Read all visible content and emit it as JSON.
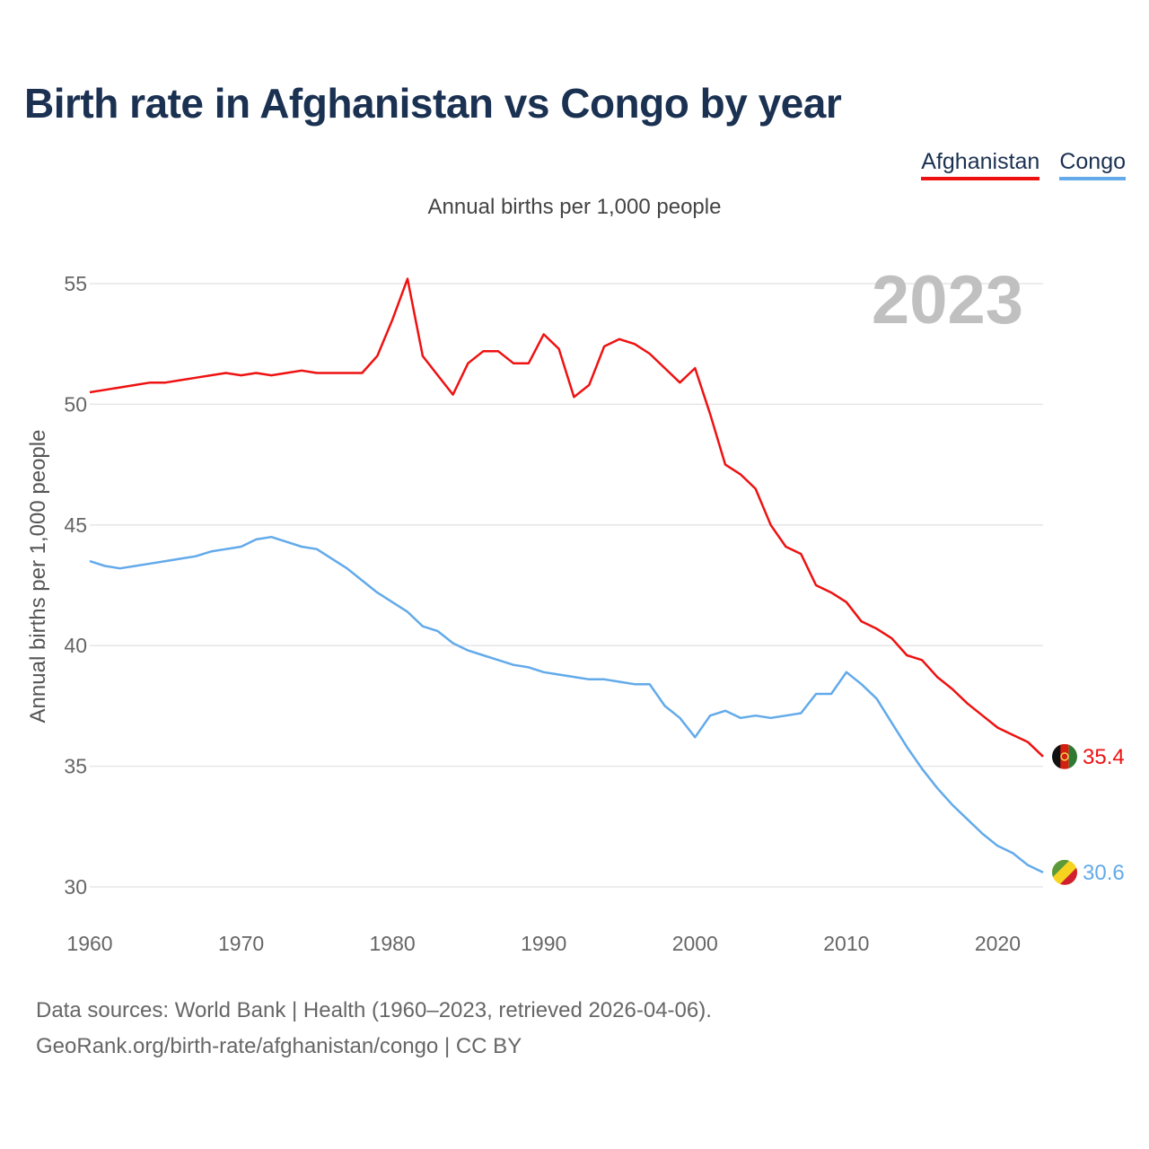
{
  "chart_data": {
    "type": "line",
    "title": "Birth rate in Afghanistan vs Congo by year",
    "subtitle": "Annual births per 1,000 people",
    "ylabel": "Annual births per 1,000 people",
    "xlabel": "",
    "year_label": "2023",
    "xlim": [
      1960,
      2023
    ],
    "ylim": [
      30,
      55
    ],
    "x_ticks": [
      1960,
      1970,
      1980,
      1990,
      2000,
      2010,
      2020
    ],
    "y_ticks": [
      30,
      35,
      40,
      45,
      50,
      55
    ],
    "grid": true,
    "legend_position": "top-right",
    "series": [
      {
        "name": "Afghanistan",
        "color": "#ee1111",
        "end_label": "35.4",
        "x": [
          1960,
          1961,
          1962,
          1963,
          1964,
          1965,
          1966,
          1967,
          1968,
          1969,
          1970,
          1971,
          1972,
          1973,
          1974,
          1975,
          1976,
          1977,
          1978,
          1979,
          1980,
          1981,
          1982,
          1983,
          1984,
          1985,
          1986,
          1987,
          1988,
          1989,
          1990,
          1991,
          1992,
          1993,
          1994,
          1995,
          1996,
          1997,
          1998,
          1999,
          2000,
          2001,
          2002,
          2003,
          2004,
          2005,
          2006,
          2007,
          2008,
          2009,
          2010,
          2011,
          2012,
          2013,
          2014,
          2015,
          2016,
          2017,
          2018,
          2019,
          2020,
          2021,
          2022,
          2023
        ],
        "values": [
          50.5,
          50.6,
          50.7,
          50.8,
          50.9,
          50.9,
          51.0,
          51.1,
          51.2,
          51.3,
          51.2,
          51.3,
          51.2,
          51.3,
          51.4,
          51.3,
          51.3,
          51.3,
          51.3,
          52.0,
          53.5,
          55.2,
          52.0,
          51.2,
          50.4,
          51.7,
          52.2,
          52.2,
          51.7,
          51.7,
          52.9,
          52.3,
          50.3,
          50.8,
          52.4,
          52.7,
          52.5,
          52.1,
          51.5,
          50.9,
          51.5,
          49.6,
          47.5,
          47.1,
          46.5,
          45.0,
          44.1,
          43.8,
          42.5,
          42.2,
          41.8,
          41.0,
          40.7,
          40.3,
          39.6,
          39.4,
          38.7,
          38.2,
          37.6,
          37.1,
          36.6,
          36.3,
          36.0,
          35.4
        ]
      },
      {
        "name": "Congo",
        "color": "#62aaea",
        "end_label": "30.6",
        "x": [
          1960,
          1961,
          1962,
          1963,
          1964,
          1965,
          1966,
          1967,
          1968,
          1969,
          1970,
          1971,
          1972,
          1973,
          1974,
          1975,
          1976,
          1977,
          1978,
          1979,
          1980,
          1981,
          1982,
          1983,
          1984,
          1985,
          1986,
          1987,
          1988,
          1989,
          1990,
          1991,
          1992,
          1993,
          1994,
          1995,
          1996,
          1997,
          1998,
          1999,
          2000,
          2001,
          2002,
          2003,
          2004,
          2005,
          2006,
          2007,
          2008,
          2009,
          2010,
          2011,
          2012,
          2013,
          2014,
          2015,
          2016,
          2017,
          2018,
          2019,
          2020,
          2021,
          2022,
          2023
        ],
        "values": [
          43.5,
          43.3,
          43.2,
          43.3,
          43.4,
          43.5,
          43.6,
          43.7,
          43.9,
          44.0,
          44.1,
          44.4,
          44.5,
          44.3,
          44.1,
          44.0,
          43.6,
          43.2,
          42.7,
          42.2,
          41.8,
          41.4,
          40.8,
          40.6,
          40.1,
          39.8,
          39.6,
          39.4,
          39.2,
          39.1,
          38.9,
          38.8,
          38.7,
          38.6,
          38.6,
          38.5,
          38.4,
          38.4,
          37.5,
          37.0,
          36.2,
          37.1,
          37.3,
          37.0,
          37.1,
          37.0,
          37.1,
          37.2,
          38.0,
          38.0,
          38.9,
          38.4,
          37.8,
          36.8,
          35.8,
          34.9,
          34.1,
          33.4,
          32.8,
          32.2,
          31.7,
          31.4,
          30.9,
          30.6
        ]
      }
    ]
  },
  "source": {
    "line1": "Data sources: World Bank | Health (1960–2023, retrieved 2026-04-06).",
    "line2": "GeoRank.org/birth-rate/afghanistan/congo | CC BY"
  }
}
